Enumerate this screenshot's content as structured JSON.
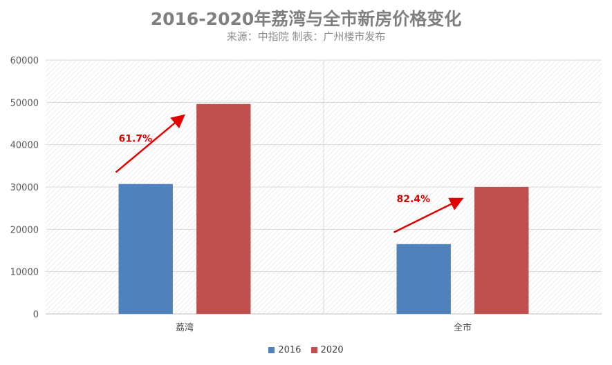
{
  "chart_data": {
    "type": "bar",
    "title": "2016-2020年荔湾与全市新房价格变化",
    "subtitle": "来源：中指院 制表：广州楼市发布",
    "categories": [
      "荔湾",
      "全市"
    ],
    "series": [
      {
        "name": "2016",
        "values": [
          30700,
          16500
        ],
        "color": "#4f81bd"
      },
      {
        "name": "2020",
        "values": [
          49600,
          30000
        ],
        "color": "#c0504d"
      }
    ],
    "ylim": [
      0,
      60000
    ],
    "yticks": [
      0,
      10000,
      20000,
      30000,
      40000,
      50000,
      60000
    ],
    "annotations": [
      {
        "category": "荔湾",
        "text": "61.7%",
        "arrow_color": "#e00000"
      },
      {
        "category": "全市",
        "text": "82.4%",
        "arrow_color": "#e00000"
      }
    ],
    "grid": true,
    "legend_position": "bottom"
  }
}
